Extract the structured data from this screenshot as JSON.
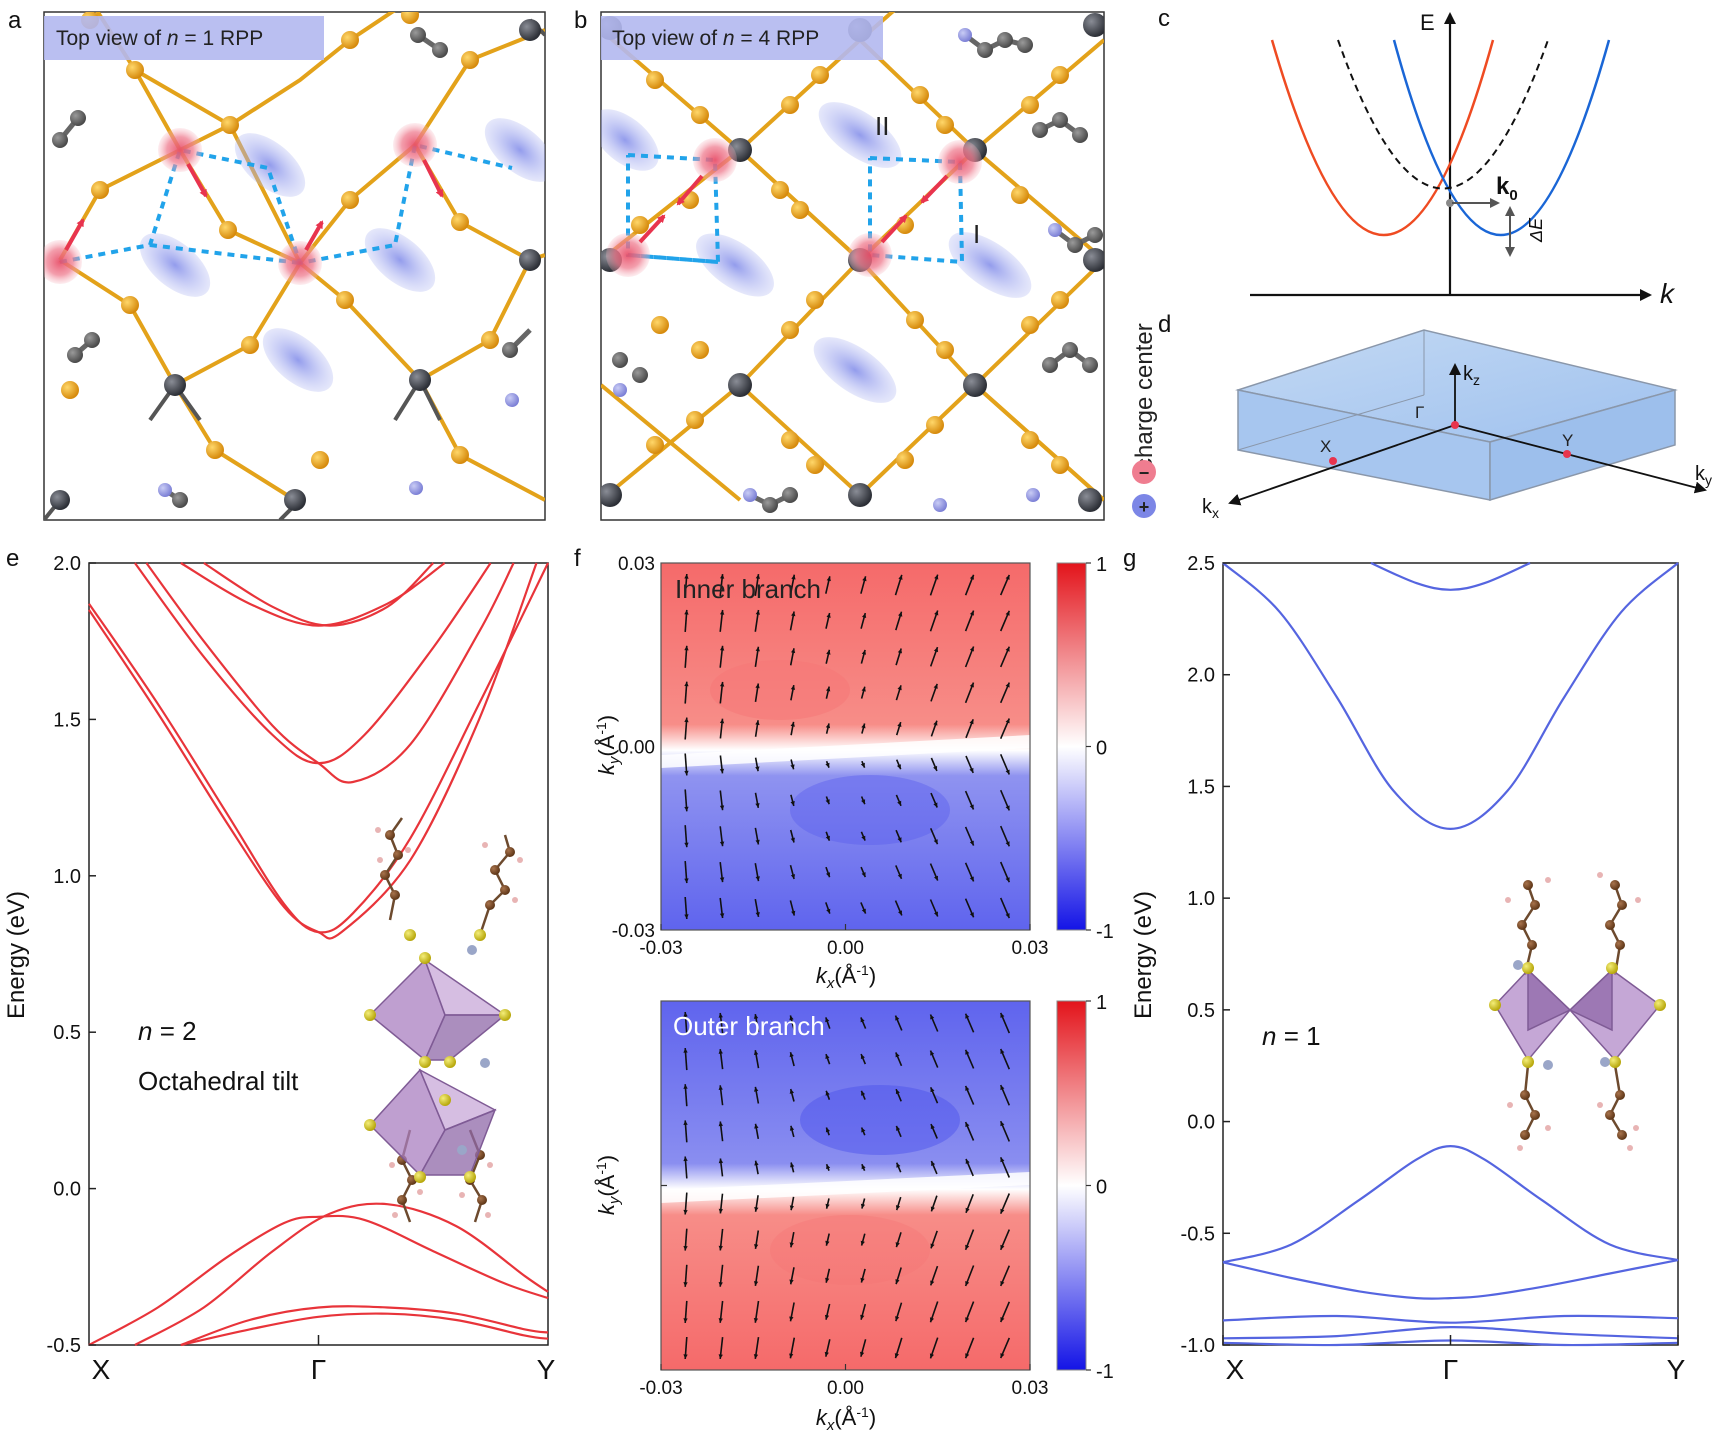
{
  "panel_letters": [
    "a",
    "b",
    "c",
    "d",
    "e",
    "f",
    "g"
  ],
  "panel_a": {
    "title_prefix": "Top view of ",
    "title_var": "n",
    "title_suffix": " = 1 RPP"
  },
  "panel_b": {
    "title_prefix": "Top view of ",
    "title_var": "n",
    "title_suffix": " = 4 RPP",
    "label_I": "I",
    "label_II": "II"
  },
  "legend": {
    "label": "charge center",
    "minus": "−",
    "plus": "+"
  },
  "panel_c": {
    "e_label": "E",
    "k_label": "k",
    "k0_main": "k",
    "k0_sub": "0",
    "delta_e": "ΔE"
  },
  "panel_d": {
    "kz_main": "k",
    "kz_sub": "z",
    "kx_main": "k",
    "kx_sub": "x",
    "ky_main": "k",
    "ky_sub": "y",
    "gamma": "Γ",
    "x_point": "X",
    "y_point": "Y"
  },
  "panel_e": {
    "ylabel": "Energy (eV)",
    "annotation_var": "n",
    "annotation_rest": " = 2",
    "annotation_2": "Octahedral tilt"
  },
  "panel_f": {
    "inner_label": "Inner branch",
    "outer_label": "Outer branch",
    "ylabel_main": "k",
    "ylabel_sub": "y",
    "ylabel_unit": "(Å",
    "ylabel_exp": "-1",
    "ylabel_close": ")",
    "xlabel_main": "k",
    "xlabel_sub": "x",
    "xlabel_unit": "(Å",
    "xlabel_exp": "-1",
    "xlabel_close": ")"
  },
  "panel_g": {
    "ylabel": "Energy (eV)",
    "annotation_var": "n",
    "annotation_rest": " = 1"
  },
  "chart_data": [
    {
      "type": "line",
      "panel": "e",
      "title": "",
      "ylabel": "Energy (eV)",
      "xlabel": "",
      "x_ticks": [
        "X",
        "Γ",
        "Y"
      ],
      "ylim": [
        -0.5,
        2.0
      ],
      "y_ticks": [
        "2.0",
        "1.5",
        "1.0",
        "0.5",
        "0.0",
        "-0.5"
      ],
      "y_tick_values": [
        2.0,
        1.5,
        1.0,
        0.5,
        0.0,
        -0.5
      ],
      "series": [
        {
          "name": "band1",
          "x": [
            0,
            0.3,
            0.6,
            0.85,
            1.0,
            1.15,
            1.4,
            1.7,
            2.0
          ],
          "values": [
            1.87,
            1.55,
            1.2,
            0.91,
            0.82,
            0.88,
            1.12,
            1.55,
            2.0
          ]
        },
        {
          "name": "band2",
          "x": [
            0,
            0.3,
            0.6,
            0.85,
            1.0,
            1.1,
            1.4,
            1.7,
            1.95
          ],
          "values": [
            1.85,
            1.52,
            1.17,
            0.9,
            0.82,
            0.82,
            1.05,
            1.5,
            2.0
          ]
        },
        {
          "name": "band3",
          "x": [
            0.25,
            0.5,
            0.8,
            1.0,
            1.15,
            1.4,
            1.7,
            1.85
          ],
          "values": [
            2.0,
            1.75,
            1.48,
            1.36,
            1.3,
            1.42,
            1.78,
            2.0
          ]
        },
        {
          "name": "band4",
          "x": [
            0.2,
            0.5,
            0.8,
            1.0,
            1.2,
            1.5,
            1.75
          ],
          "values": [
            2.0,
            1.7,
            1.45,
            1.36,
            1.45,
            1.73,
            2.0
          ]
        },
        {
          "name": "band5",
          "x": [
            0.4,
            0.7,
            1.0,
            1.3,
            1.55
          ],
          "values": [
            2.0,
            1.87,
            1.8,
            1.87,
            2.0
          ]
        },
        {
          "name": "band6",
          "x": [
            0.5,
            0.8,
            1.05,
            1.3,
            1.5
          ],
          "values": [
            2.0,
            1.86,
            1.8,
            1.86,
            2.0
          ]
        },
        {
          "name": "vb1",
          "x": [
            0,
            0.3,
            0.6,
            0.85,
            1.0,
            1.2,
            1.5,
            1.8,
            2.0
          ],
          "values": [
            -0.5,
            -0.38,
            -0.22,
            -0.11,
            -0.09,
            -0.1,
            -0.2,
            -0.3,
            -0.35
          ]
        },
        {
          "name": "vb2",
          "x": [
            0.2,
            0.5,
            0.8,
            1.05,
            1.3,
            1.6,
            1.9,
            2.0
          ],
          "values": [
            -0.5,
            -0.38,
            -0.2,
            -0.08,
            -0.05,
            -0.12,
            -0.28,
            -0.33
          ]
        },
        {
          "name": "vb3",
          "x": [
            0.4,
            0.7,
            1.0,
            1.3,
            1.6,
            1.9,
            2.0
          ],
          "values": [
            -0.5,
            -0.42,
            -0.38,
            -0.38,
            -0.4,
            -0.45,
            -0.46
          ]
        },
        {
          "name": "vb4",
          "x": [
            0.4,
            0.7,
            1.0,
            1.3,
            1.6,
            1.9,
            2.0
          ],
          "values": [
            -0.5,
            -0.45,
            -0.41,
            -0.4,
            -0.42,
            -0.47,
            -0.48
          ]
        }
      ]
    },
    {
      "type": "heatmap",
      "panel": "f-inner",
      "title": "Inner branch",
      "xlim": [
        -0.03,
        0.03
      ],
      "ylim": [
        -0.03,
        0.03
      ],
      "x_ticks": [
        "-0.03",
        "0.00",
        "0.03"
      ],
      "x_tick_values": [
        -0.03,
        0.0,
        0.03
      ],
      "y_ticks": [
        "0.03",
        "0.00",
        "-0.03"
      ],
      "y_tick_values": [
        0.03,
        0.0,
        -0.03
      ],
      "colorbar": {
        "range": [
          -1,
          1
        ],
        "ticks": [
          "1",
          "0",
          "-1"
        ],
        "tick_values": [
          1,
          0,
          -1
        ]
      },
      "upper_value": 1,
      "lower_value": -1
    },
    {
      "type": "heatmap",
      "panel": "f-outer",
      "title": "Outer branch",
      "xlim": [
        -0.03,
        0.03
      ],
      "ylim": [
        -0.03,
        0.03
      ],
      "x_ticks": [
        "-0.03",
        "0.00",
        "0.03"
      ],
      "x_tick_values": [
        -0.03,
        0.0,
        0.03
      ],
      "colorbar": {
        "range": [
          -1,
          1
        ],
        "ticks": [
          "1",
          "0",
          "-1"
        ],
        "tick_values": [
          1,
          0,
          -1
        ]
      },
      "upper_value": -1,
      "lower_value": 1
    },
    {
      "type": "line",
      "panel": "g",
      "title": "",
      "ylabel": "Energy (eV)",
      "xlabel": "",
      "x_ticks": [
        "X",
        "Γ",
        "Y"
      ],
      "ylim": [
        -1.0,
        2.5
      ],
      "y_ticks": [
        "2.5",
        "2.0",
        "1.5",
        "1.0",
        "0.5",
        "0.0",
        "-0.5",
        "-1.0"
      ],
      "y_tick_values": [
        2.5,
        2.0,
        1.5,
        1.0,
        0.5,
        0.0,
        -0.5,
        -1.0
      ],
      "series": [
        {
          "name": "cb1",
          "x": [
            0,
            0.25,
            0.5,
            0.75,
            1.0,
            1.25,
            1.5,
            1.75,
            2.0
          ],
          "values": [
            2.5,
            2.28,
            1.9,
            1.48,
            1.31,
            1.48,
            1.9,
            2.28,
            2.5
          ]
        },
        {
          "name": "cb2",
          "x": [
            0.65,
            0.85,
            1.0,
            1.15,
            1.35
          ],
          "values": [
            2.5,
            2.41,
            2.38,
            2.41,
            2.5
          ]
        },
        {
          "name": "vb1",
          "x": [
            0,
            0.3,
            0.6,
            0.85,
            1.0,
            1.15,
            1.4,
            1.7,
            2.0
          ],
          "values": [
            -0.63,
            -0.55,
            -0.35,
            -0.17,
            -0.11,
            -0.17,
            -0.35,
            -0.55,
            -0.62
          ]
        },
        {
          "name": "vb2",
          "x": [
            0,
            0.3,
            0.6,
            0.85,
            1.0,
            1.15,
            1.4,
            1.7,
            2.0
          ],
          "values": [
            -0.63,
            -0.7,
            -0.76,
            -0.79,
            -0.79,
            -0.78,
            -0.74,
            -0.68,
            -0.62
          ]
        },
        {
          "name": "vb3",
          "x": [
            0,
            0.5,
            1.0,
            1.5,
            2.0
          ],
          "values": [
            -0.89,
            -0.87,
            -0.9,
            -0.87,
            -0.88
          ]
        },
        {
          "name": "vb4",
          "x": [
            0,
            0.5,
            1.0,
            1.5,
            2.0
          ],
          "values": [
            -0.97,
            -0.96,
            -0.92,
            -0.95,
            -0.97
          ]
        },
        {
          "name": "vb5",
          "x": [
            0,
            0.5,
            1.0,
            1.5,
            2.0
          ],
          "values": [
            -0.99,
            -1.0,
            -0.98,
            -1.0,
            -0.99
          ]
        }
      ]
    }
  ]
}
